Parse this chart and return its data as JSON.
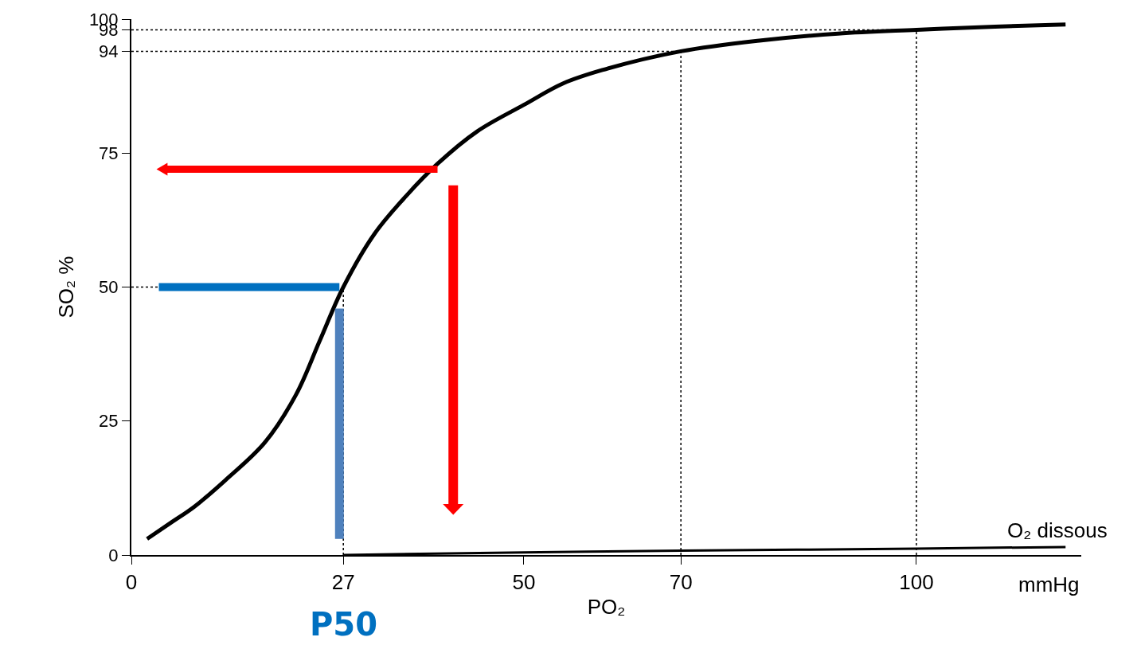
{
  "chart_data": {
    "type": "line",
    "xlabel": "PO₂",
    "ylabel": "SO₂ %",
    "xlim": [
      0,
      121
    ],
    "ylim": [
      0,
      100
    ],
    "xticks": [
      0,
      27,
      50,
      70,
      100
    ],
    "yticks": [
      0,
      25,
      50,
      75,
      94,
      98,
      100
    ],
    "series": [
      {
        "color": "#000000",
        "x": [
          2,
          5,
          8,
          12,
          17,
          21,
          24,
          27,
          31,
          35,
          39,
          44,
          50,
          55,
          60,
          70,
          80,
          90,
          100,
          110,
          119
        ],
        "values": [
          3,
          6,
          9,
          14,
          21,
          30,
          40,
          50,
          60,
          67,
          73,
          79,
          84,
          88,
          90.5,
          94,
          96,
          97.3,
          98,
          98.6,
          99
        ]
      },
      {
        "name": "O₂ dissous",
        "color": "#000000",
        "x": [
          27,
          50,
          70,
          100,
          119
        ],
        "values": [
          0,
          0.5,
          0.8,
          1.2,
          1.5
        ]
      }
    ],
    "ref_lines": [
      {
        "axis": "x",
        "value": 27,
        "line_style": "dotted"
      },
      {
        "axis": "y",
        "value": 50,
        "line_style": "dotted"
      },
      {
        "axis": "x",
        "value": 70,
        "line_style": "dotted"
      },
      {
        "axis": "y",
        "value": 94,
        "line_style": "dotted"
      },
      {
        "axis": "x",
        "value": 100,
        "line_style": "dotted"
      },
      {
        "axis": "y",
        "value": 98,
        "line_style": "dotted"
      }
    ],
    "annotations": [
      "mmHg",
      "P50"
    ],
    "legend": false,
    "grid": false,
    "marker": "none",
    "line_style": "solid"
  }
}
